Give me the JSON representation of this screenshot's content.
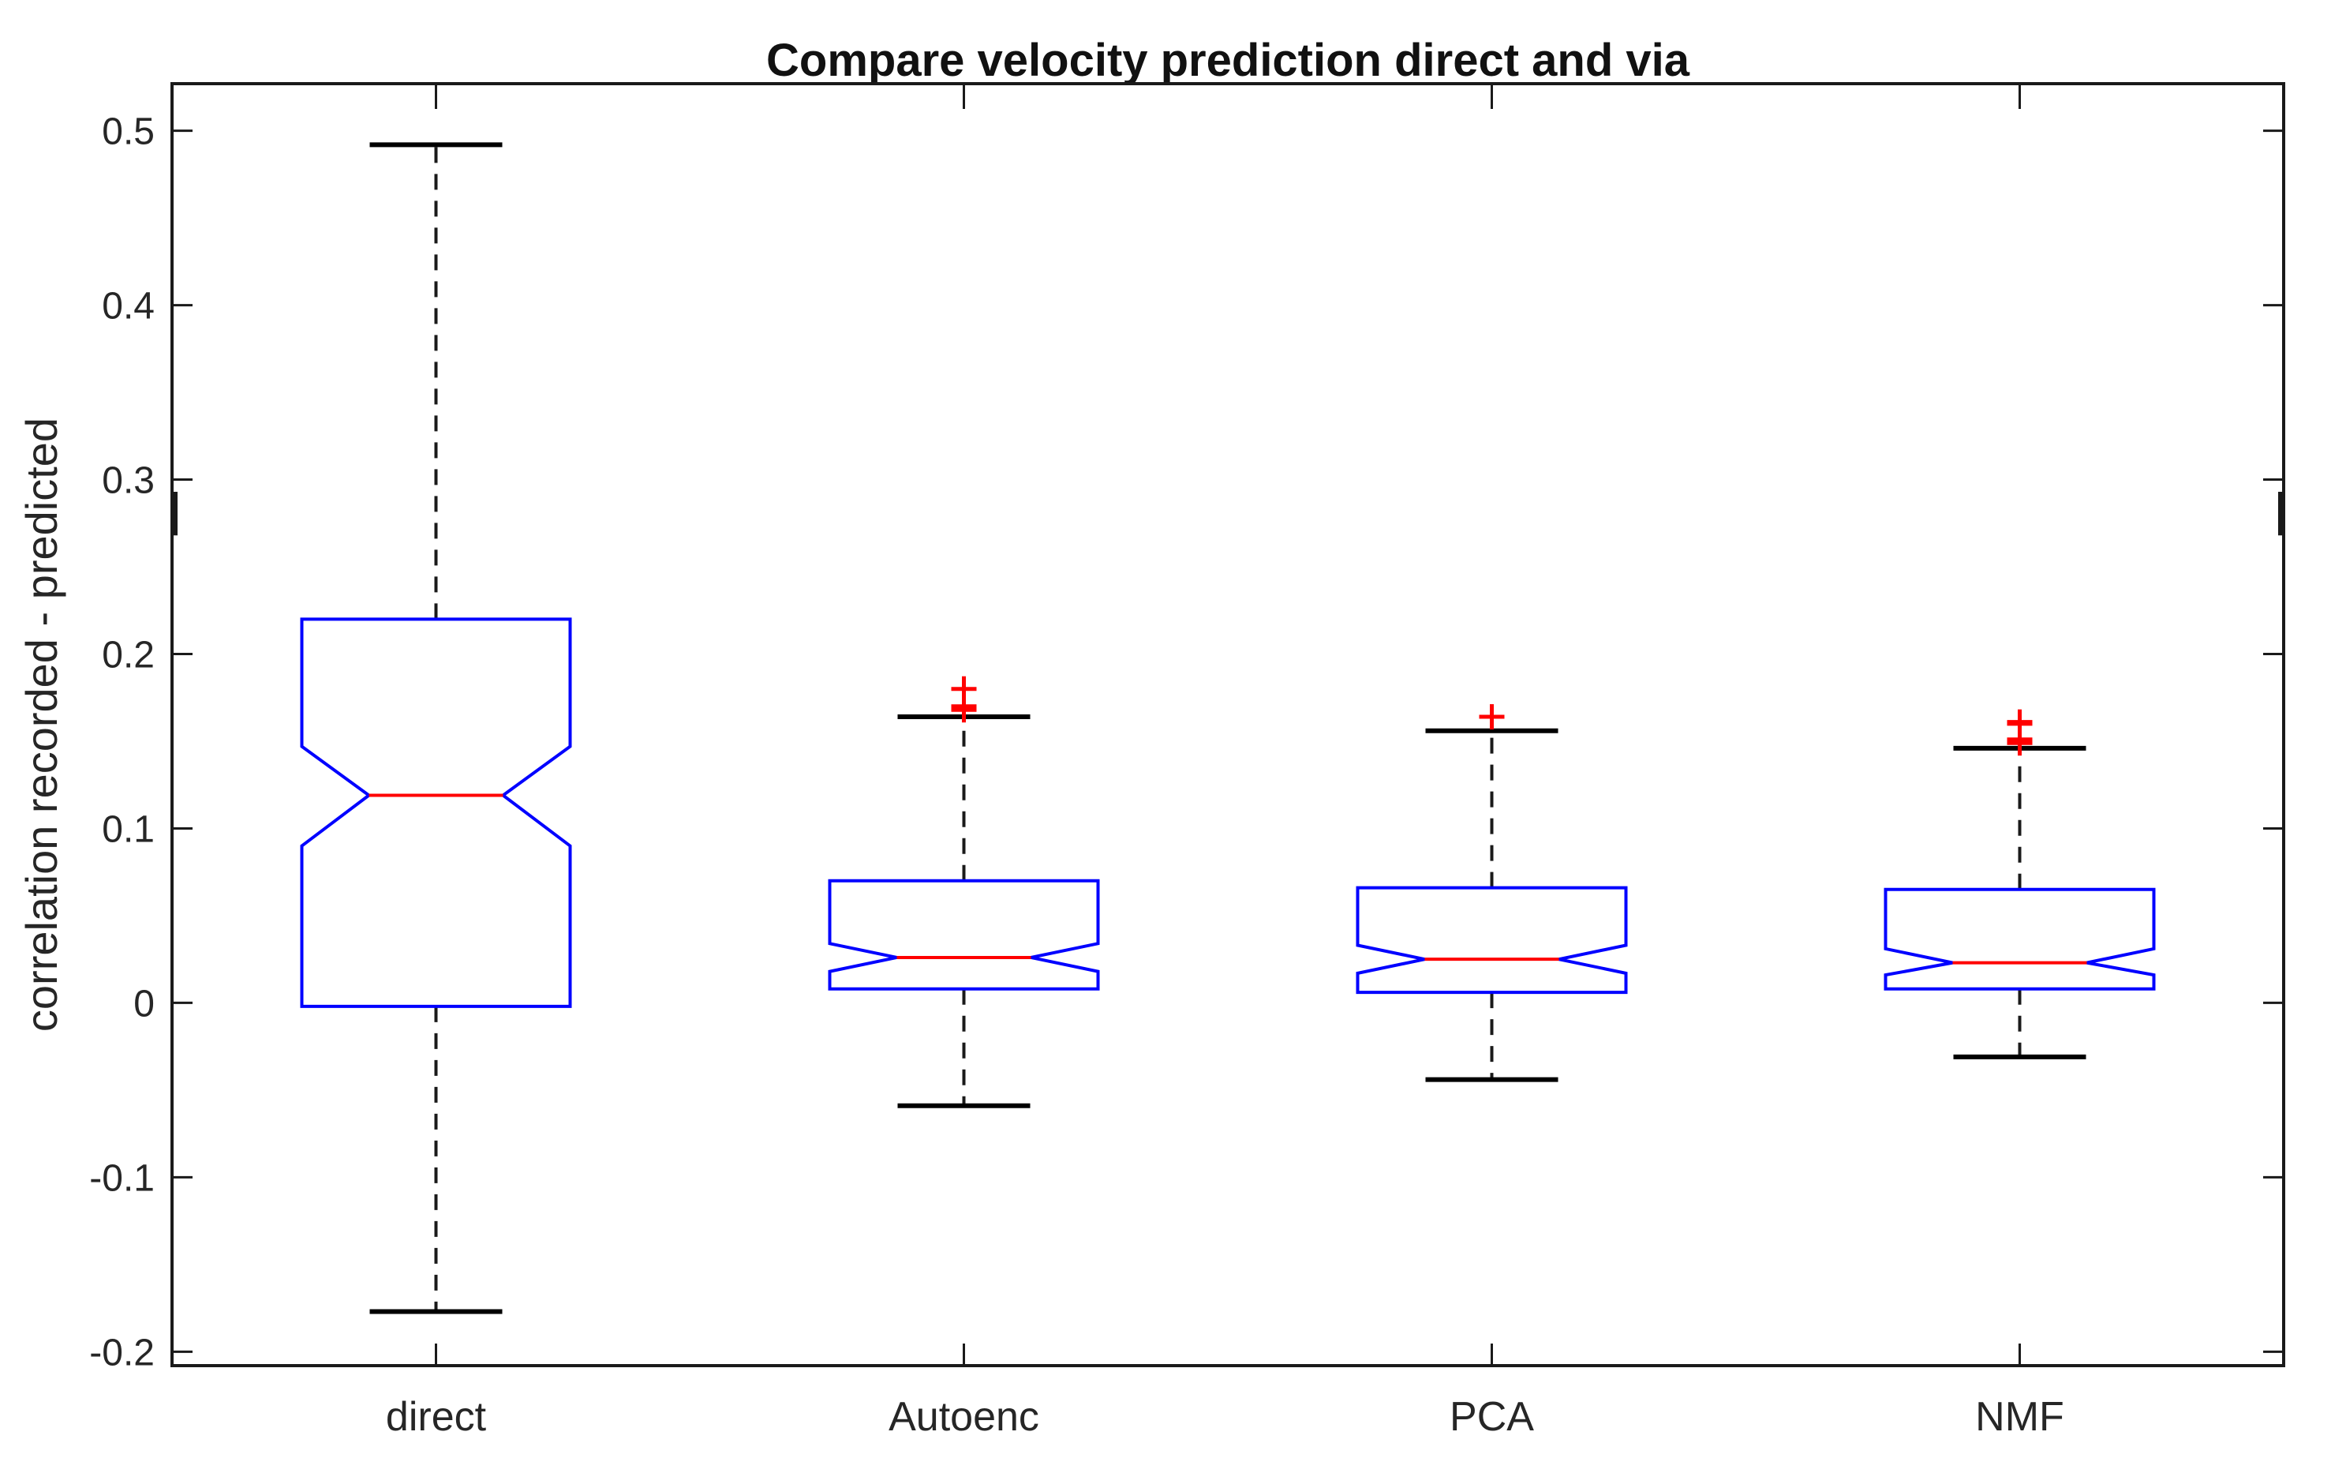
{
  "colors": {
    "box": "#0000ff",
    "median": "#ff0000",
    "outlier": "#ff0000",
    "whisker": "#1a1a1a",
    "axis": "#1a1a1a",
    "text": "#262626",
    "background": "#ffffff"
  },
  "chart_data": {
    "type": "boxplot",
    "notched": true,
    "grid": false,
    "legend": "none",
    "title": "Compare velocity prediction direct and via",
    "xlabel": "",
    "ylabel": "correlation recorded - predicted",
    "categories": [
      "direct",
      "Autoenc",
      "PCA",
      "NMF"
    ],
    "xlim": [
      0.5,
      4.5
    ],
    "ylim": [
      -0.208,
      0.527
    ],
    "yticks": {
      "values": [
        0.5,
        0.4,
        0.3,
        0.2,
        0.1,
        0,
        -0.1,
        -0.2
      ],
      "labels": [
        "0.5",
        "0.4",
        "0.3",
        "0.2",
        "0.1",
        "0",
        "-0.1",
        "-0.2"
      ]
    },
    "series": [
      {
        "name": "direct",
        "whisker_low": -0.177,
        "q1": -0.002,
        "notch_low": 0.09,
        "median": 0.119,
        "notch_high": 0.147,
        "q3": 0.22,
        "whisker_high": 0.492,
        "outliers": []
      },
      {
        "name": "Autoenc",
        "whisker_low": -0.059,
        "q1": 0.008,
        "notch_low": 0.018,
        "median": 0.026,
        "notch_high": 0.034,
        "q3": 0.07,
        "whisker_high": 0.164,
        "outliers": [
          0.18,
          0.17,
          0.168
        ]
      },
      {
        "name": "PCA",
        "whisker_low": -0.044,
        "q1": 0.006,
        "notch_low": 0.017,
        "median": 0.025,
        "notch_high": 0.033,
        "q3": 0.066,
        "whisker_high": 0.156,
        "outliers": [
          0.164
        ]
      },
      {
        "name": "NMF",
        "whisker_low": -0.031,
        "q1": 0.008,
        "notch_low": 0.016,
        "median": 0.023,
        "notch_high": 0.031,
        "q3": 0.065,
        "whisker_high": 0.146,
        "outliers": [
          0.161,
          0.16,
          0.151,
          0.149
        ]
      }
    ],
    "edge_marks": {
      "sides": [
        "left",
        "right"
      ],
      "value_low": 0.268,
      "value_high": 0.293
    }
  }
}
